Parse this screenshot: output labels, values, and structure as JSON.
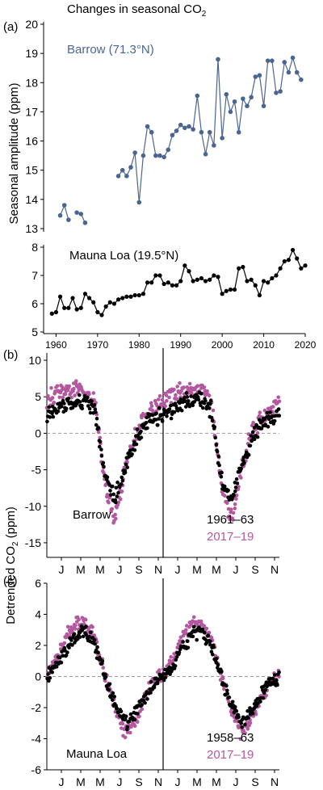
{
  "figure_title": "Changes in seasonal CO",
  "figure_title_sub": "2",
  "colors": {
    "barrow": "#4a6690",
    "black": "#000000",
    "magenta": "#b3589e",
    "zero": "#999999"
  },
  "chart_data": [
    {
      "panel": "(a)",
      "type": "line",
      "ylabel": "Seasonal amplitude (ppm)",
      "xlim": [
        1957,
        2020
      ],
      "xticks": [
        1960,
        1970,
        1980,
        1990,
        2000,
        2010,
        2020
      ],
      "ylim": [
        13,
        20
      ],
      "yticks": [
        13,
        14,
        15,
        16,
        17,
        18,
        19,
        20
      ],
      "series": [
        {
          "name": "Barrow (71.3°N)",
          "color": "#4a6690",
          "segments": [
            [
              [
                1961,
                13.45
              ],
              [
                1962,
                13.8
              ],
              [
                1963,
                13.3
              ]
            ],
            [
              [
                1965,
                13.55
              ],
              [
                1966,
                13.5
              ],
              [
                1967,
                13.2
              ]
            ],
            [
              [
                1975,
                14.8
              ],
              [
                1976,
                15.0
              ],
              [
                1977,
                14.8
              ],
              [
                1978,
                15.1
              ],
              [
                1979,
                15.6
              ],
              [
                1980,
                13.9
              ],
              [
                1981,
                15.5
              ],
              [
                1982,
                16.5
              ],
              [
                1983,
                16.3
              ],
              [
                1984,
                15.5
              ],
              [
                1985,
                15.5
              ],
              [
                1986,
                15.45
              ],
              [
                1987,
                15.7
              ],
              [
                1988,
                16.2
              ],
              [
                1989,
                16.35
              ],
              [
                1990,
                16.55
              ],
              [
                1991,
                16.45
              ],
              [
                1992,
                16.5
              ],
              [
                1993,
                16.4
              ],
              [
                1994,
                17.55
              ],
              [
                1995,
                16.3
              ],
              [
                1996,
                15.55
              ],
              [
                1997,
                16.3
              ],
              [
                1998,
                15.85
              ],
              [
                1999,
                18.8
              ],
              [
                2000,
                16.1
              ],
              [
                2001,
                17.6
              ],
              [
                2002,
                17.0
              ],
              [
                2003,
                17.35
              ],
              [
                2004,
                16.3
              ],
              [
                2005,
                17.45
              ],
              [
                2006,
                17.2
              ],
              [
                2007,
                17.5
              ],
              [
                2008,
                18.2
              ],
              [
                2009,
                18.25
              ],
              [
                2010,
                17.2
              ],
              [
                2011,
                18.75
              ],
              [
                2012,
                18.75
              ],
              [
                2013,
                17.65
              ],
              [
                2014,
                17.7
              ],
              [
                2015,
                18.7
              ],
              [
                2016,
                18.35
              ],
              [
                2017,
                18.85
              ],
              [
                2018,
                18.35
              ],
              [
                2019,
                18.1
              ]
            ]
          ]
        }
      ]
    },
    {
      "type": "line",
      "ylim": [
        5,
        8
      ],
      "yticks": [
        5,
        6,
        7,
        8
      ],
      "series": [
        {
          "name": "Mauna Loa (19.5°N)",
          "color": "#000000",
          "values": [
            [
              1959,
              5.65
            ],
            [
              1960,
              5.7
            ],
            [
              1961,
              6.25
            ],
            [
              1962,
              5.85
            ],
            [
              1963,
              5.85
            ],
            [
              1964,
              6.2
            ],
            [
              1965,
              5.8
            ],
            [
              1966,
              5.85
            ],
            [
              1967,
              6.35
            ],
            [
              1968,
              6.2
            ],
            [
              1969,
              6.05
            ],
            [
              1970,
              5.7
            ],
            [
              1971,
              5.6
            ],
            [
              1972,
              5.9
            ],
            [
              1973,
              6.05
            ],
            [
              1974,
              6.0
            ],
            [
              1975,
              6.15
            ],
            [
              1976,
              6.2
            ],
            [
              1977,
              6.25
            ],
            [
              1978,
              6.25
            ],
            [
              1979,
              6.3
            ],
            [
              1980,
              6.3
            ],
            [
              1981,
              6.35
            ],
            [
              1982,
              6.75
            ],
            [
              1983,
              6.75
            ],
            [
              1984,
              7.0
            ],
            [
              1985,
              7.0
            ],
            [
              1986,
              6.7
            ],
            [
              1987,
              6.75
            ],
            [
              1988,
              6.65
            ],
            [
              1989,
              6.65
            ],
            [
              1990,
              6.8
            ],
            [
              1991,
              7.35
            ],
            [
              1992,
              7.15
            ],
            [
              1993,
              6.8
            ],
            [
              1994,
              6.85
            ],
            [
              1995,
              6.9
            ],
            [
              1996,
              6.8
            ],
            [
              1997,
              6.85
            ],
            [
              1998,
              7.0
            ],
            [
              1999,
              6.95
            ],
            [
              2000,
              6.35
            ],
            [
              2001,
              6.45
            ],
            [
              2002,
              6.5
            ],
            [
              2003,
              6.5
            ],
            [
              2004,
              7.25
            ],
            [
              2005,
              7.3
            ],
            [
              2006,
              6.8
            ],
            [
              2007,
              6.85
            ],
            [
              2008,
              6.65
            ],
            [
              2009,
              6.3
            ],
            [
              2010,
              6.8
            ],
            [
              2011,
              6.75
            ],
            [
              2012,
              6.9
            ],
            [
              2013,
              7.0
            ],
            [
              2014,
              7.25
            ],
            [
              2015,
              7.5
            ],
            [
              2016,
              7.55
            ],
            [
              2017,
              7.9
            ],
            [
              2018,
              7.6
            ],
            [
              2019,
              7.25
            ],
            [
              2020,
              7.35
            ]
          ]
        }
      ]
    },
    {
      "panel": "(b)",
      "type": "scatter",
      "station": "Barrow",
      "ylabel": "Detrended CO",
      "ylabel_sub": "2",
      "ylabel_unit": " (ppm)",
      "xlim": [
        0,
        24
      ],
      "xticks": [
        1.5,
        3.5,
        5.5,
        7.5,
        9.5,
        11.5,
        13.5,
        15.5,
        17.5,
        19.5,
        21.5,
        23.5
      ],
      "xticklabels": [
        "J",
        "M",
        "M",
        "J",
        "S",
        "N",
        "J",
        "M",
        "M",
        "J",
        "S",
        "N"
      ],
      "divider_month": 12,
      "ylim": [
        -17,
        11
      ],
      "yticks": [
        -15,
        -10,
        -5,
        0,
        5,
        10
      ],
      "series": [
        {
          "name": "1961–63",
          "color": "#000000",
          "cycle_months": [
            0,
            1,
            2,
            3,
            4,
            5,
            6,
            7,
            8,
            9,
            10,
            11,
            12
          ],
          "cycle_values": [
            2.5,
            3.5,
            4.0,
            4.3,
            4.5,
            3.0,
            -6.0,
            -9.0,
            -5.0,
            -1.5,
            1.0,
            2.0,
            2.5
          ]
        },
        {
          "name": "2017–19",
          "color": "#b3589e",
          "cycle_months": [
            0,
            1,
            2,
            3,
            4,
            5,
            6,
            7,
            8,
            9,
            10,
            11,
            12
          ],
          "cycle_values": [
            4.5,
            5.4,
            5.7,
            6.0,
            5.8,
            4.2,
            -7.0,
            -12.0,
            -5.5,
            -0.5,
            2.0,
            3.5,
            4.5
          ]
        }
      ]
    },
    {
      "panel": "(c)",
      "type": "scatter",
      "station": "Mauna Loa",
      "xlim": [
        0,
        24
      ],
      "xticks": [
        1.5,
        3.5,
        5.5,
        7.5,
        9.5,
        11.5,
        13.5,
        15.5,
        17.5,
        19.5,
        21.5,
        23.5
      ],
      "xticklabels": [
        "J",
        "M",
        "M",
        "J",
        "S",
        "N",
        "J",
        "M",
        "M",
        "J",
        "S",
        "N"
      ],
      "divider_month": 12,
      "ylim": [
        -6,
        6
      ],
      "yticks": [
        -6,
        -4,
        -2,
        0,
        2,
        4,
        6
      ],
      "series": [
        {
          "name": "1958–63",
          "color": "#000000",
          "cycle_months": [
            0,
            1,
            2,
            3,
            4,
            5,
            6,
            7,
            8,
            9,
            10,
            11,
            12
          ],
          "cycle_values": [
            0.0,
            0.7,
            1.8,
            2.7,
            2.9,
            2.0,
            0.0,
            -1.7,
            -3.0,
            -2.5,
            -1.3,
            -0.4,
            0.0
          ]
        },
        {
          "name": "2017–19",
          "color": "#b3589e",
          "cycle_months": [
            0,
            1,
            2,
            3,
            4,
            5,
            6,
            7,
            8,
            9,
            10,
            11,
            12
          ],
          "cycle_values": [
            0.2,
            1.1,
            2.5,
            3.4,
            3.5,
            2.4,
            0.0,
            -2.0,
            -3.6,
            -3.0,
            -1.5,
            -0.3,
            0.2
          ]
        }
      ]
    }
  ]
}
